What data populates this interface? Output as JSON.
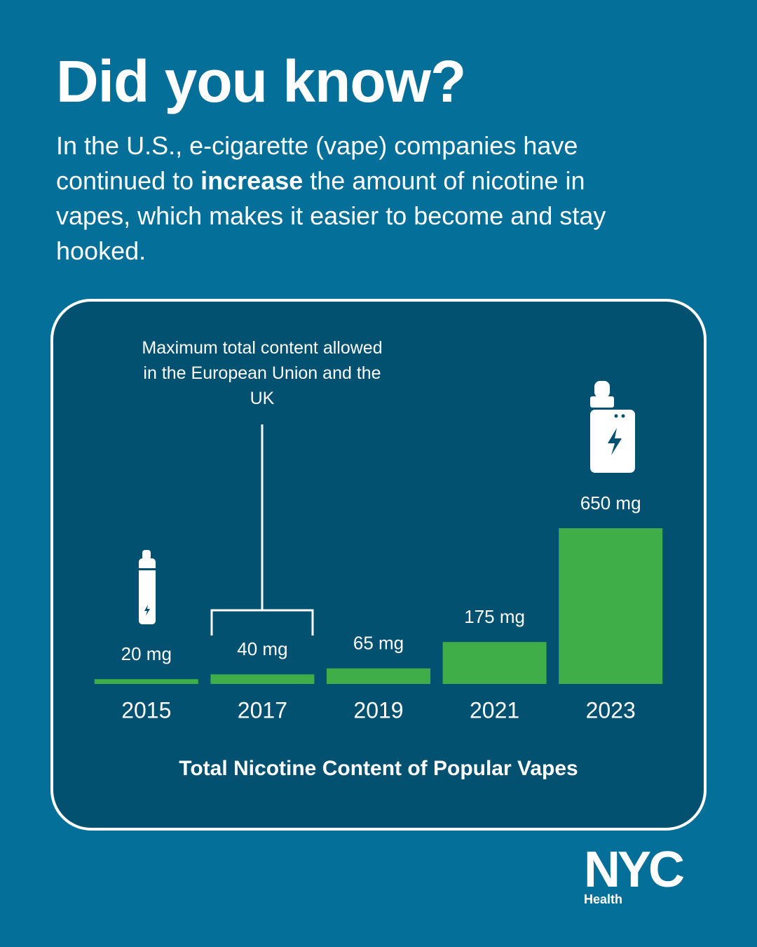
{
  "header": {
    "title": "Did you know?",
    "body_before": "In the U.S., e-cigarette (vape) companies have continued to ",
    "body_bold": "increase",
    "body_after": " the amount of nicotine in vapes, which makes it easier to become and stay hooked."
  },
  "chart_data": {
    "type": "bar",
    "title": "Total Nicotine Content of Popular Vapes",
    "categories": [
      "2015",
      "2017",
      "2019",
      "2021",
      "2023"
    ],
    "values": [
      20,
      40,
      65,
      175,
      650
    ],
    "value_labels": [
      "20 mg",
      "40 mg",
      "65 mg",
      "175 mg",
      "650 mg"
    ],
    "color": "#3fae49",
    "ylim": [
      0,
      650
    ],
    "annotation": "Maximum total content allowed in the European Union and the UK"
  },
  "logo": {
    "name": "NYC",
    "department": "Health"
  }
}
